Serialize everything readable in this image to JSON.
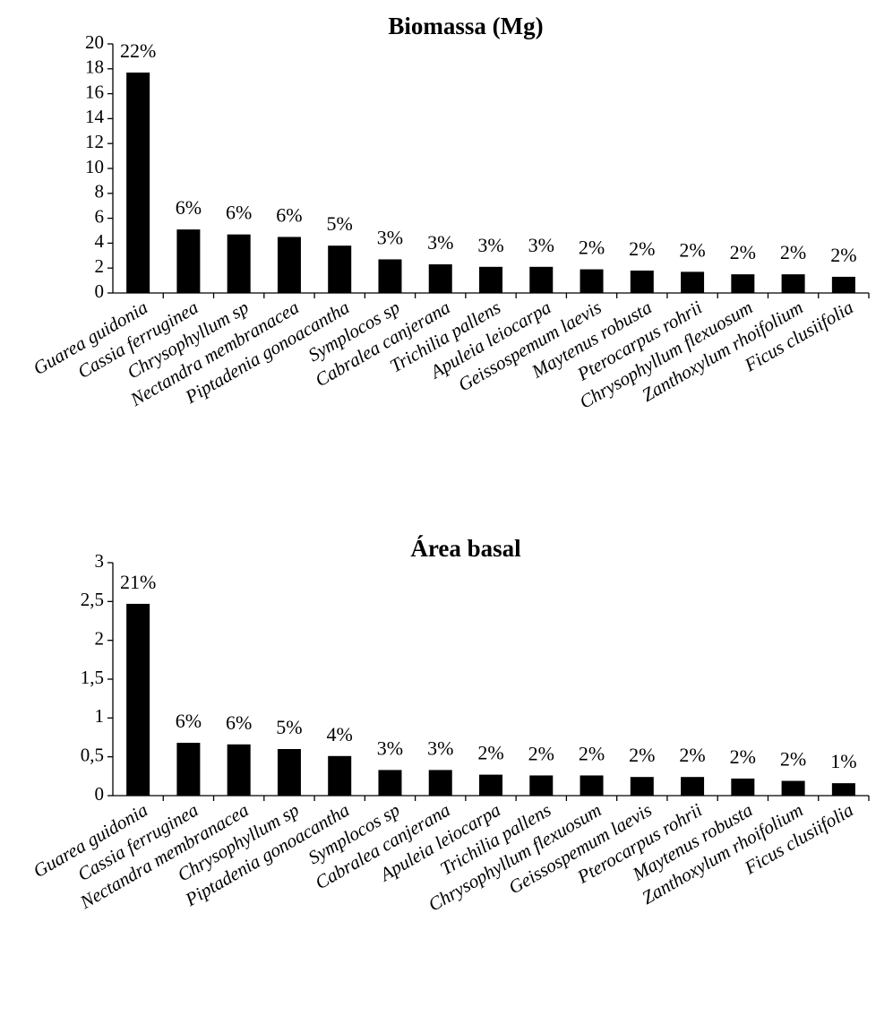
{
  "chart_data": [
    {
      "type": "bar",
      "title": "Biomassa (Mg)",
      "categories": [
        "Guarea guidonia",
        "Cassia ferruginea",
        "Chrysophyllum sp",
        "Nectandra membranacea",
        "Piptadenia gonoacantha",
        "Symplocos sp",
        "Cabralea canjerana",
        "Trichilia pallens",
        "Apuleia leiocarpa",
        "Geissospemum laevis",
        "Maytenus robusta",
        "Pterocarpus rohrii",
        "Chrysophyllum flexuosum",
        "Zanthoxylum rhoifolium",
        "Ficus clusiifolia"
      ],
      "values": [
        17.7,
        5.1,
        4.7,
        4.5,
        3.8,
        2.7,
        2.3,
        2.1,
        2.1,
        1.9,
        1.8,
        1.7,
        1.5,
        1.5,
        1.3
      ],
      "percent_labels": [
        "22%",
        "6%",
        "6%",
        "6%",
        "5%",
        "3%",
        "3%",
        "3%",
        "3%",
        "2%",
        "2%",
        "2%",
        "2%",
        "2%",
        "2%"
      ],
      "color": "#000000",
      "ylim": [
        0,
        20
      ],
      "yticks": [
        0,
        2,
        4,
        6,
        8,
        10,
        12,
        14,
        16,
        18,
        20
      ],
      "grid": false
    },
    {
      "type": "bar",
      "title": "Área basal",
      "categories": [
        "Guarea guidonia",
        "Cassia ferruginea",
        "Nectandra membranacea",
        "Chrysophyllum sp",
        "Piptadenia gonoacantha",
        "Symplocos sp",
        "Cabralea canjerana",
        "Apuleia leiocarpa",
        "Trichilia pallens",
        "Chrysophyllum flexuosum",
        "Geissospemum laevis",
        "Pterocarpus rohrii",
        "Maytenus robusta",
        "Zanthoxylum rhoifolium",
        "Ficus clusiifolia"
      ],
      "values": [
        2.47,
        0.68,
        0.66,
        0.6,
        0.51,
        0.33,
        0.33,
        0.27,
        0.26,
        0.26,
        0.24,
        0.24,
        0.22,
        0.19,
        0.16
      ],
      "percent_labels": [
        "21%",
        "6%",
        "6%",
        "5%",
        "4%",
        "3%",
        "3%",
        "2%",
        "2%",
        "2%",
        "2%",
        "2%",
        "2%",
        "2%",
        "1%"
      ],
      "color": "#000000",
      "ylim": [
        0,
        3
      ],
      "yticks": [
        0,
        {
          "value": 0.5,
          "label": "0,5"
        },
        1,
        {
          "value": 1.5,
          "label": "1,5"
        },
        2,
        {
          "value": 2.5,
          "label": "2,5"
        },
        3
      ],
      "grid": false
    }
  ]
}
